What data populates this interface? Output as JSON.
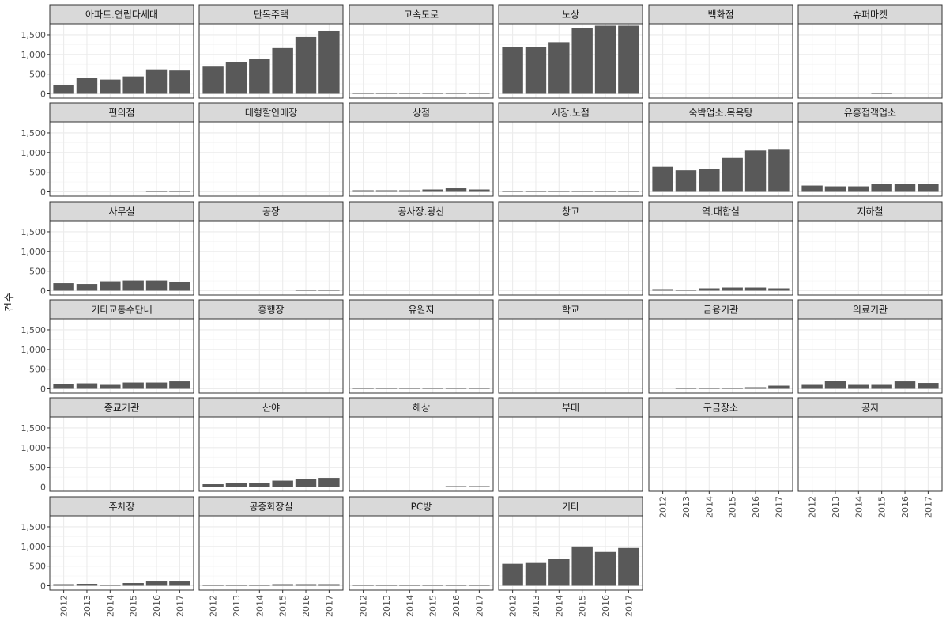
{
  "chart_data": {
    "type": "bar",
    "title": "",
    "xlabel": "",
    "ylabel": "건수",
    "categories": [
      "2012",
      "2013",
      "2014",
      "2015",
      "2016",
      "2017"
    ],
    "yticks": [
      0,
      500,
      1000,
      1500
    ],
    "ytick_labels": [
      "0",
      "500",
      "1,000",
      "1,500"
    ],
    "ylim": [
      0,
      1900
    ],
    "grid": true,
    "colors": {
      "bar": "#595959",
      "strip": "#d9d9d9",
      "panel_border": "#333333",
      "grid_major": "#ebebeb",
      "grid_minor": "#f5f5f5"
    },
    "facets": [
      {
        "name": "아파트.연립다세대",
        "values": [
          230,
          400,
          360,
          440,
          620,
          590
        ]
      },
      {
        "name": "단독주택",
        "values": [
          690,
          810,
          890,
          1160,
          1440,
          1600
        ]
      },
      {
        "name": "고속도로",
        "values": [
          15,
          15,
          15,
          15,
          15,
          15
        ]
      },
      {
        "name": "노상",
        "values": [
          1180,
          1180,
          1310,
          1680,
          1730,
          1730
        ]
      },
      {
        "name": "백화점",
        "values": [
          0,
          0,
          0,
          0,
          0,
          0
        ]
      },
      {
        "name": "슈퍼마켓",
        "values": [
          0,
          0,
          0,
          10,
          0,
          0
        ]
      },
      {
        "name": "편의점",
        "values": [
          0,
          0,
          0,
          0,
          10,
          10
        ]
      },
      {
        "name": "대형할인매장",
        "values": [
          0,
          0,
          0,
          0,
          0,
          0
        ]
      },
      {
        "name": "상점",
        "values": [
          40,
          40,
          40,
          60,
          90,
          60
        ]
      },
      {
        "name": "시장.노점",
        "values": [
          10,
          10,
          10,
          10,
          10,
          10
        ]
      },
      {
        "name": "숙박업소.목욕탕",
        "values": [
          640,
          550,
          580,
          860,
          1050,
          1090
        ]
      },
      {
        "name": "유흥접객업소",
        "values": [
          160,
          140,
          140,
          200,
          200,
          200
        ]
      },
      {
        "name": "사무실",
        "values": [
          190,
          170,
          240,
          260,
          260,
          220
        ]
      },
      {
        "name": "공장",
        "values": [
          0,
          0,
          0,
          0,
          10,
          10
        ]
      },
      {
        "name": "공사장.광산",
        "values": [
          0,
          0,
          0,
          0,
          0,
          0
        ]
      },
      {
        "name": "창고",
        "values": [
          0,
          0,
          0,
          0,
          0,
          0
        ]
      },
      {
        "name": "역.대합실",
        "values": [
          40,
          25,
          60,
          80,
          80,
          60
        ]
      },
      {
        "name": "지하철",
        "values": [
          0,
          0,
          0,
          0,
          0,
          0
        ]
      },
      {
        "name": "기타교통수단내",
        "values": [
          120,
          140,
          100,
          160,
          160,
          190
        ]
      },
      {
        "name": "흥행장",
        "values": [
          0,
          0,
          0,
          0,
          0,
          0
        ]
      },
      {
        "name": "유원지",
        "values": [
          15,
          15,
          15,
          15,
          15,
          15
        ]
      },
      {
        "name": "학교",
        "values": [
          0,
          0,
          0,
          0,
          0,
          0
        ]
      },
      {
        "name": "금융기관",
        "values": [
          0,
          10,
          10,
          15,
          40,
          80
        ]
      },
      {
        "name": "의료기관",
        "values": [
          100,
          210,
          100,
          100,
          190,
          150
        ]
      },
      {
        "name": "종교기관",
        "values": [
          0,
          0,
          0,
          0,
          0,
          0
        ]
      },
      {
        "name": "산야",
        "values": [
          70,
          110,
          100,
          160,
          200,
          230
        ]
      },
      {
        "name": "해상",
        "values": [
          0,
          0,
          0,
          0,
          10,
          10
        ]
      },
      {
        "name": "부대",
        "values": [
          0,
          0,
          0,
          0,
          0,
          0
        ]
      },
      {
        "name": "구금장소",
        "values": [
          0,
          0,
          0,
          0,
          0,
          0
        ]
      },
      {
        "name": "공지",
        "values": [
          0,
          0,
          0,
          0,
          0,
          0
        ]
      },
      {
        "name": "주차장",
        "values": [
          40,
          50,
          30,
          70,
          110,
          110
        ]
      },
      {
        "name": "공중화장실",
        "values": [
          25,
          25,
          25,
          40,
          40,
          40
        ]
      },
      {
        "name": "PC방",
        "values": [
          10,
          10,
          10,
          10,
          10,
          10
        ]
      },
      {
        "name": "기타",
        "values": [
          560,
          580,
          690,
          1000,
          860,
          960
        ]
      }
    ]
  }
}
